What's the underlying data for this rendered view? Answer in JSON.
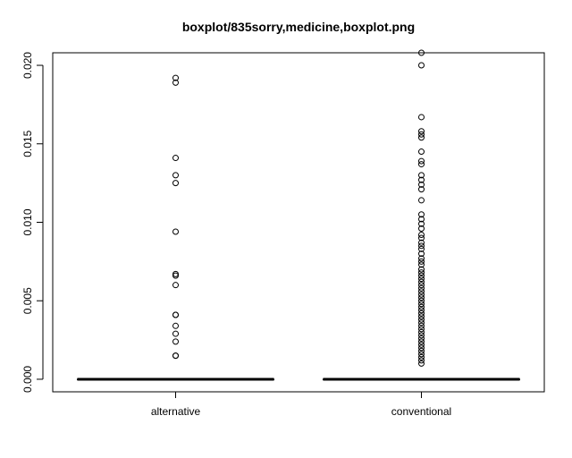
{
  "chart_data": {
    "type": "boxplot",
    "title": "boxplot/835sorry,medicine,boxplot.png",
    "xlabel": "",
    "ylabel": "",
    "ylim": [
      -0.0008,
      0.0208
    ],
    "yticks": [
      "0.000",
      "0.005",
      "0.010",
      "0.015",
      "0.020"
    ],
    "ytick_values": [
      0,
      0.005,
      0.01,
      0.015,
      0.02
    ],
    "categories": [
      "alternative",
      "conventional"
    ],
    "boxes": [
      {
        "category": "alternative",
        "median": 0,
        "q1": 0,
        "q3": 0,
        "whisker_low": 0,
        "whisker_high": 0,
        "outliers": [
          0.0192,
          0.0189,
          0.0141,
          0.013,
          0.0125,
          0.0094,
          0.0067,
          0.0066,
          0.006,
          0.0041,
          0.0041,
          0.0034,
          0.0029,
          0.0024,
          0.0015,
          0.0015
        ]
      },
      {
        "category": "conventional",
        "median": 0,
        "q1": 0,
        "q3": 0,
        "whisker_low": 0,
        "whisker_high": 0,
        "outliers": [
          0.0208,
          0.02,
          0.0167,
          0.0158,
          0.0156,
          0.0154,
          0.0145,
          0.0139,
          0.0137,
          0.013,
          0.0127,
          0.0124,
          0.0121,
          0.0114,
          0.0105,
          0.0102,
          0.0099,
          0.0096,
          0.0092,
          0.009,
          0.0087,
          0.0085,
          0.0083,
          0.008,
          0.0077,
          0.0075,
          0.0073,
          0.007,
          0.0068,
          0.0066,
          0.0064,
          0.0062,
          0.006,
          0.0058,
          0.0056,
          0.0054,
          0.0052,
          0.005,
          0.0048,
          0.0046,
          0.0044,
          0.0042,
          0.004,
          0.0038,
          0.0036,
          0.0034,
          0.0032,
          0.003,
          0.0028,
          0.0026,
          0.0024,
          0.0022,
          0.002,
          0.0018,
          0.0016,
          0.0014,
          0.0012,
          0.001
        ]
      }
    ],
    "grid": false,
    "legend": "none"
  }
}
